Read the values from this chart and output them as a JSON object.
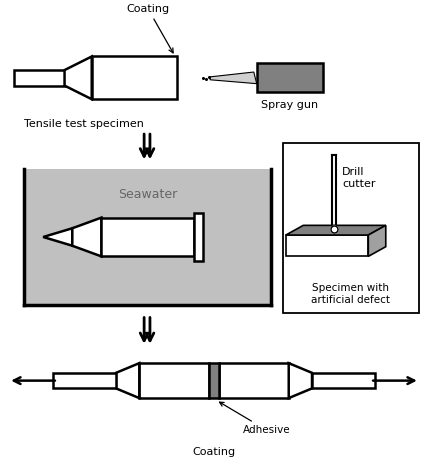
{
  "fig_width": 4.28,
  "fig_height": 4.58,
  "dpi": 100,
  "bg_color": "#ffffff",
  "gray_water": "#c0c0c0",
  "gray_dark": "#808080",
  "gray_mid": "#a0a0a0",
  "gray_light": "#d0d0d0",
  "black": "#000000",
  "labels": {
    "coating_top": "Coating",
    "tensile": "Tensile test specimen",
    "spray_gun": "Spray gun",
    "seawater": "Seawater",
    "drill": "Drill\ncutter",
    "specimen_defect": "Specimen with\nartificial defect",
    "adhesive": "Adhesive",
    "coating_bottom": "Coating"
  },
  "font_size": 8,
  "lw": 1.8
}
